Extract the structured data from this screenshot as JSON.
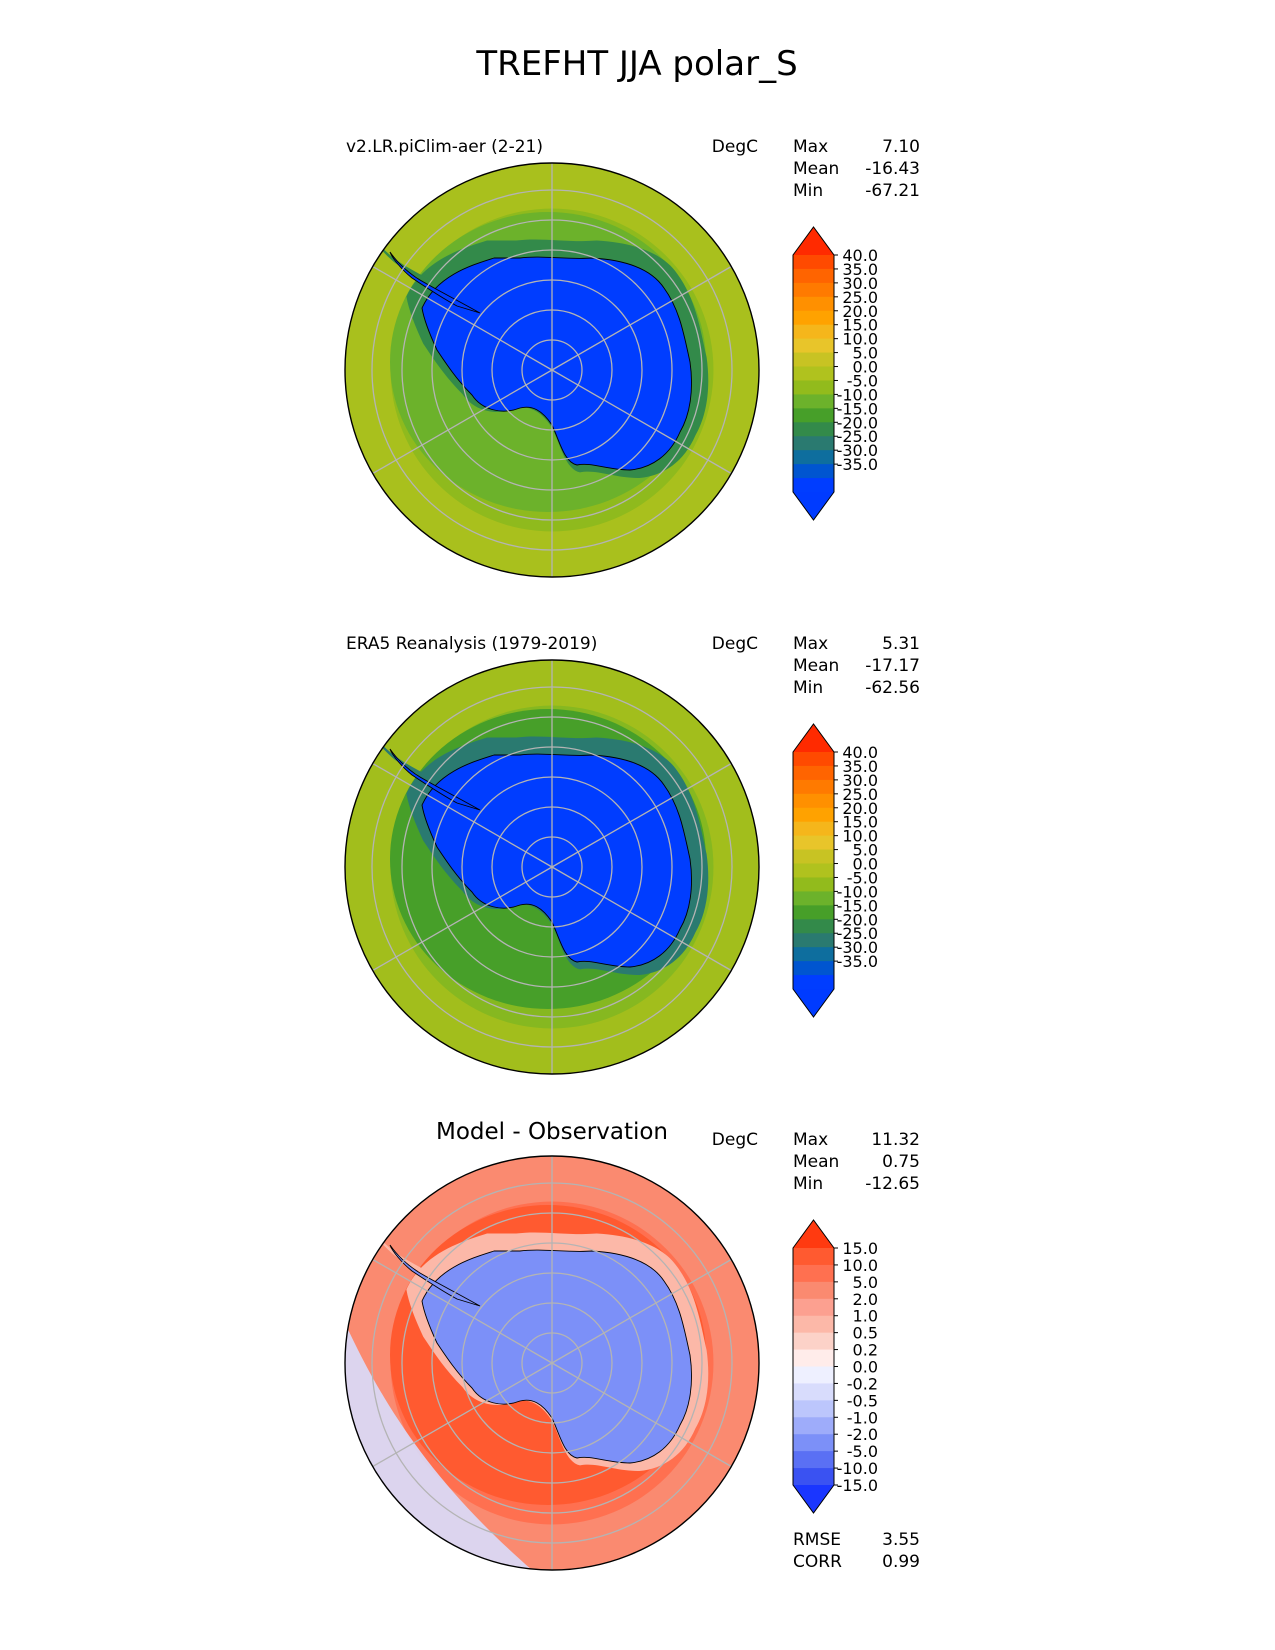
{
  "chart_data": {
    "type": "heatmap",
    "title": "TREFHT JJA polar_S",
    "panels": [
      {
        "label": "v2.LR.piClim-aer (2-21)",
        "units": "DegC",
        "stats": [
          {
            "name": "Max",
            "value": "7.10"
          },
          {
            "name": "Mean",
            "value": "-16.43"
          },
          {
            "name": "Min",
            "value": "-67.21"
          }
        ],
        "colorbar": {
          "ticks": [
            "40.0",
            "35.0",
            "30.0",
            "25.0",
            "20.0",
            "15.0",
            "10.0",
            "5.0",
            "0.0",
            "-5.0",
            "-10.0",
            "-15.0",
            "-20.0",
            "-25.0",
            "-30.0",
            "-35.0"
          ],
          "colors": [
            "#ff2a00",
            "#ff4a00",
            "#ff6400",
            "#ff7a00",
            "#ff9000",
            "#ffa200",
            "#f5b61b",
            "#e8c52a",
            "#c8c323",
            "#b0c21e",
            "#92bb1c",
            "#6cb22b",
            "#479f29",
            "#338a4a",
            "#2a7a70",
            "#0e6e9e",
            "#0055d0",
            "#003dff",
            "#003bff"
          ]
        },
        "fields": {
          "ocean_outer": "#a9c01d",
          "ocean_mid": "#8fba1d",
          "ocean_inner": "#6cb22b",
          "coast": "#338a4a",
          "interior": "#003dff"
        }
      },
      {
        "label": "ERA5 Reanalysis (1979-2019)",
        "units": "DegC",
        "stats": [
          {
            "name": "Max",
            "value": "5.31"
          },
          {
            "name": "Mean",
            "value": "-17.17"
          },
          {
            "name": "Min",
            "value": "-62.56"
          }
        ],
        "colorbar": {
          "ticks": [
            "40.0",
            "35.0",
            "30.0",
            "25.0",
            "20.0",
            "15.0",
            "10.0",
            "5.0",
            "0.0",
            "-5.0",
            "-10.0",
            "-15.0",
            "-20.0",
            "-25.0",
            "-30.0",
            "-35.0"
          ],
          "colors": [
            "#ff2a00",
            "#ff4a00",
            "#ff6400",
            "#ff7a00",
            "#ff9000",
            "#ffa200",
            "#f5b61b",
            "#e8c52a",
            "#c8c323",
            "#b0c21e",
            "#92bb1c",
            "#6cb22b",
            "#479f29",
            "#338a4a",
            "#2a7a70",
            "#0e6e9e",
            "#0055d0",
            "#003dff",
            "#003bff"
          ]
        },
        "fields": {
          "ocean_outer": "#a2be1c",
          "ocean_mid": "#86b820",
          "ocean_inner": "#479f29",
          "coast": "#2a7a70",
          "interior": "#003dff"
        }
      },
      {
        "label": "Model - Observation",
        "units": "DegC",
        "stats": [
          {
            "name": "Max",
            "value": "11.32"
          },
          {
            "name": "Mean",
            "value": "0.75"
          },
          {
            "name": "Min",
            "value": "-12.65"
          }
        ],
        "extra_stats": [
          {
            "name": "RMSE",
            "value": "3.55"
          },
          {
            "name": "CORR",
            "value": "0.99"
          }
        ],
        "colorbar": {
          "ticks": [
            "15.0",
            "10.0",
            "5.0",
            "2.0",
            "1.0",
            "0.5",
            "0.2",
            "0.0",
            "-0.2",
            "-0.5",
            "-1.0",
            "-2.0",
            "-5.0",
            "-10.0",
            "-15.0"
          ],
          "colors": [
            "#ff3a10",
            "#ff5a30",
            "#ff7050",
            "#fa8a70",
            "#fca090",
            "#fcb8a8",
            "#fcd2c8",
            "#ffecea",
            "#eef0ff",
            "#d8dcfc",
            "#bcc6fc",
            "#9eacfa",
            "#7c90f8",
            "#5a70f4",
            "#3a52f2",
            "#1a36ff"
          ]
        },
        "fields": {
          "ocean_outer": "#fa8a70",
          "ocean_mid": "#ff7050",
          "ocean_inner": "#ff5a30",
          "coast": "#fcb8a8",
          "interior": "#7c90f8",
          "anomaly_cold": "#d8dcfc"
        }
      }
    ]
  }
}
